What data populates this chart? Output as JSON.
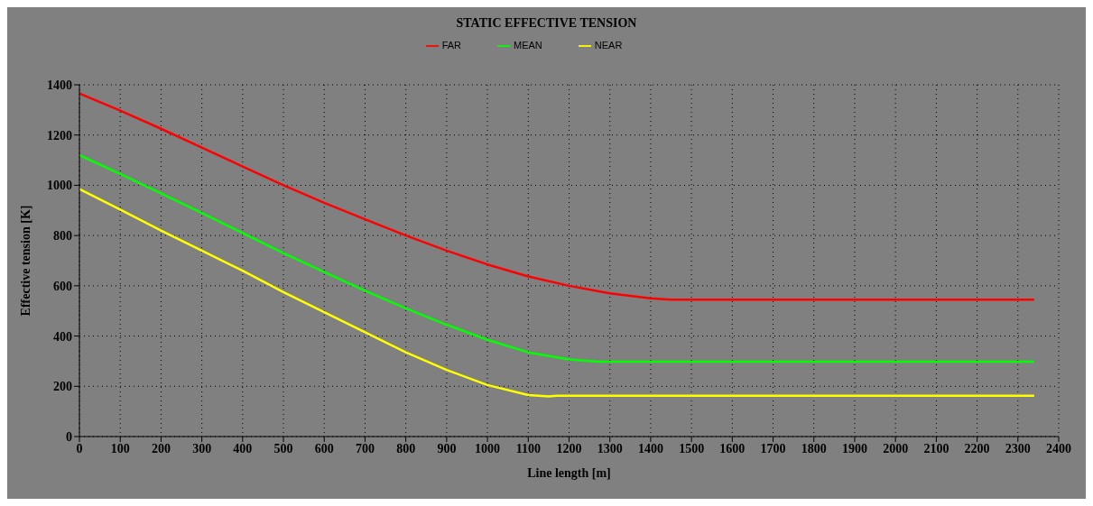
{
  "chart_data": {
    "type": "line",
    "title": "STATIC EFFECTIVE TENSION",
    "xlabel": "Line length [m]",
    "ylabel": "Effective tension [K]",
    "x": [
      0,
      100,
      200,
      300,
      400,
      500,
      600,
      700,
      800,
      900,
      1000,
      1100,
      1200,
      1300,
      1400,
      1450,
      2340
    ],
    "series": [
      {
        "name": "FAR",
        "color": "#ff0000",
        "values": [
          1365,
          1297,
          1225,
          1150,
          1075,
          1000,
          930,
          865,
          800,
          740,
          685,
          637,
          600,
          570,
          550,
          545,
          545
        ]
      },
      {
        "name": "MEAN",
        "color": "#00ff00",
        "x": [
          0,
          100,
          200,
          300,
          400,
          500,
          600,
          700,
          800,
          900,
          1000,
          1100,
          1200,
          1270,
          2340
        ],
        "values": [
          1120,
          1045,
          968,
          890,
          810,
          730,
          655,
          580,
          510,
          445,
          385,
          335,
          307,
          298,
          298
        ]
      },
      {
        "name": "NEAR",
        "color": "#ffff00",
        "x": [
          0,
          100,
          200,
          300,
          400,
          500,
          600,
          700,
          800,
          900,
          1000,
          1100,
          1150,
          1170,
          2340
        ],
        "values": [
          985,
          903,
          820,
          740,
          660,
          575,
          495,
          415,
          335,
          265,
          205,
          165,
          160,
          162,
          162
        ]
      }
    ],
    "xlim": [
      0,
      2400
    ],
    "xticks": [
      0,
      100,
      200,
      300,
      400,
      500,
      600,
      700,
      800,
      900,
      1000,
      1100,
      1200,
      1300,
      1400,
      1500,
      1600,
      1700,
      1800,
      1900,
      2000,
      2100,
      2200,
      2300,
      2400
    ],
    "ylim": [
      0,
      1400
    ],
    "yticks": [
      0,
      200,
      400,
      600,
      800,
      1000,
      1200,
      1400
    ],
    "grid": true,
    "legend": "top",
    "marker": "none",
    "line_style": "solid"
  }
}
